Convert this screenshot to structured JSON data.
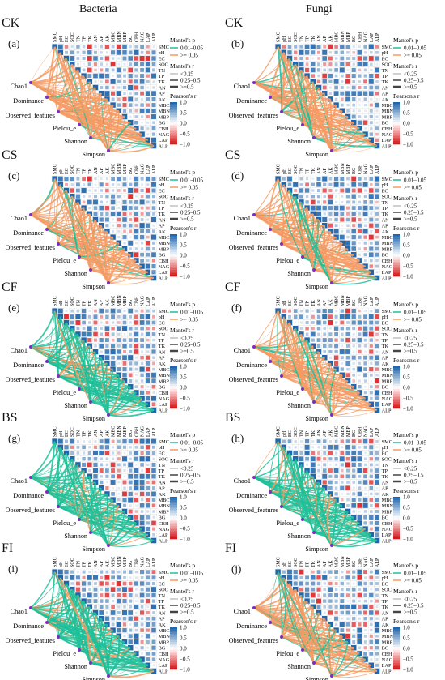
{
  "columns": [
    "Bacteria",
    "Fungi"
  ],
  "variables": [
    "SMC",
    "pH",
    "EC",
    "SOC",
    "TN",
    "TP",
    "TK",
    "AN",
    "AP",
    "AK",
    "MBC",
    "MBN",
    "MBP",
    "BG",
    "CBH",
    "NAG",
    "LAP",
    "ALP"
  ],
  "indices": [
    "Chao1",
    "Dominance",
    "Observed_features",
    "Pielou_e",
    "Shannon",
    "Simpson"
  ],
  "legend": {
    "mantel_p_title": "Mantel's p",
    "mantel_r_title": "Mantel's r",
    "pearson_title": "Pearson's r",
    "p_items": [
      "0.01–0.05",
      ">= 0.05"
    ],
    "r_items": [
      "<0.25",
      "0.25–0.5",
      ">=0.5"
    ],
    "pearson_ticks": [
      "1.0",
      "0.5",
      "0.0",
      "−0.5",
      "−1.0"
    ],
    "colors": {
      "p_001_005": "#1fbf99",
      "p_ge_005": "#f59a63",
      "pos": "#2166ac",
      "neg": "#d7191c"
    }
  },
  "chart_data": [
    {
      "type": "heatmap",
      "treatment": "CK",
      "panel": "(a)",
      "group": "Bacteria",
      "dominant_link": "p_ge_005",
      "link_band": "mixed"
    },
    {
      "type": "heatmap",
      "treatment": "CK",
      "panel": "(b)",
      "group": "Fungi",
      "dominant_link": "p_ge_005",
      "link_band": "mixed"
    },
    {
      "type": "heatmap",
      "treatment": "CS",
      "panel": "(c)",
      "group": "Bacteria",
      "dominant_link": "p_ge_005",
      "link_band": "mixed"
    },
    {
      "type": "heatmap",
      "treatment": "CS",
      "panel": "(d)",
      "group": "Fungi",
      "dominant_link": "p_ge_005",
      "link_band": "mixed"
    },
    {
      "type": "heatmap",
      "treatment": "CF",
      "panel": "(e)",
      "group": "Bacteria",
      "dominant_link": "p_001_005",
      "link_band": "mixed"
    },
    {
      "type": "heatmap",
      "treatment": "CF",
      "panel": "(f)",
      "group": "Fungi",
      "dominant_link": "p_ge_005",
      "link_band": "mixed"
    },
    {
      "type": "heatmap",
      "treatment": "BS",
      "panel": "(g)",
      "group": "Bacteria",
      "dominant_link": "p_001_005",
      "link_band": "mixed"
    },
    {
      "type": "heatmap",
      "treatment": "BS",
      "panel": "(h)",
      "group": "Fungi",
      "dominant_link": "p_001_005",
      "link_band": "mixed"
    },
    {
      "type": "heatmap",
      "treatment": "FI",
      "panel": "(i)",
      "group": "Bacteria",
      "dominant_link": "p_001_005",
      "link_band": "mixed"
    },
    {
      "type": "heatmap",
      "treatment": "FI",
      "panel": "(j)",
      "group": "Fungi",
      "dominant_link": "p_ge_005",
      "link_band": "mixed"
    }
  ]
}
